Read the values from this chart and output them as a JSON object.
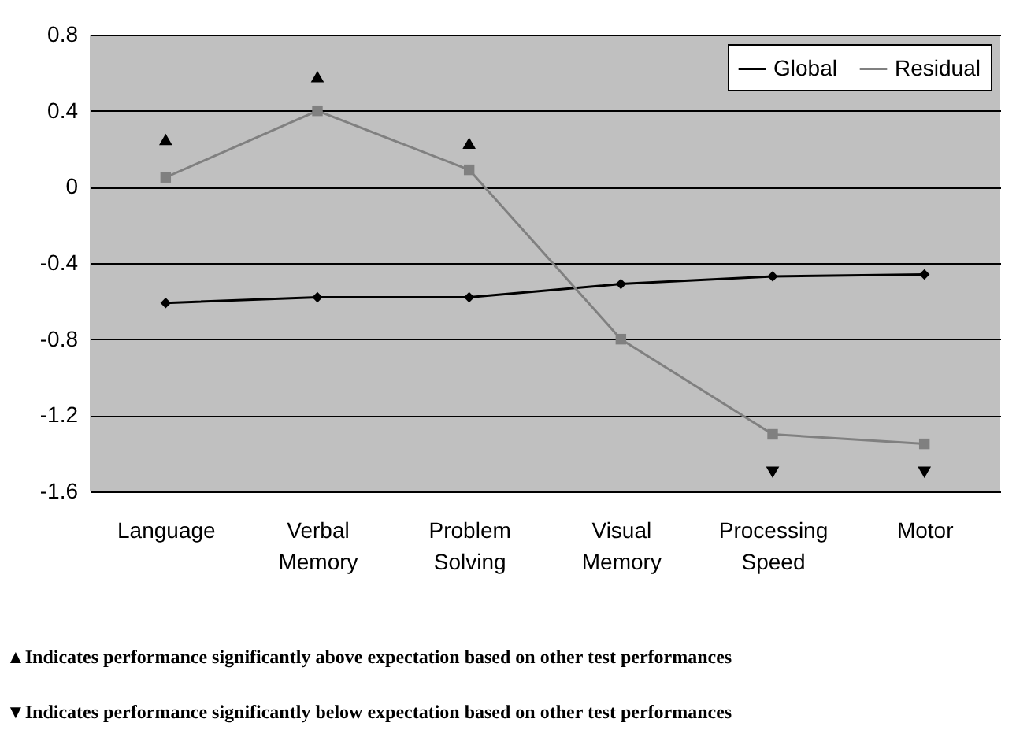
{
  "chart_data": {
    "type": "line",
    "categories": [
      "Language",
      "Verbal Memory",
      "Problem Solving",
      "Visual Memory",
      "Processing Speed",
      "Motor"
    ],
    "series": [
      {
        "name": "Global",
        "color": "#000000",
        "marker": "diamond",
        "values": [
          -0.61,
          -0.58,
          -0.58,
          -0.51,
          -0.47,
          -0.46
        ]
      },
      {
        "name": "Residual",
        "color": "#808080",
        "marker": "square",
        "values": [
          0.05,
          0.4,
          0.09,
          -0.8,
          -1.3,
          -1.35
        ]
      },
      {
        "type": "scatter",
        "color": "#000000",
        "marker": "triangle",
        "values": [
          0.25,
          0.58,
          0.23,
          null,
          null,
          null
        ]
      },
      {
        "type": "scatter",
        "color": "#000000",
        "marker": "triangle-down",
        "values": [
          null,
          null,
          null,
          null,
          -1.5,
          -1.5
        ]
      }
    ],
    "ylim": [
      -1.6,
      0.8
    ],
    "yticks": [
      -1.6,
      -1.2,
      -0.8,
      -0.4,
      0,
      0.4,
      0.8
    ],
    "grid": "y",
    "legend": "top right",
    "annotations": [
      "▲Indicates performance significantly above expectation based on other test performances",
      "▼Indicates performance significantly below expectation based on other test performances"
    ]
  }
}
